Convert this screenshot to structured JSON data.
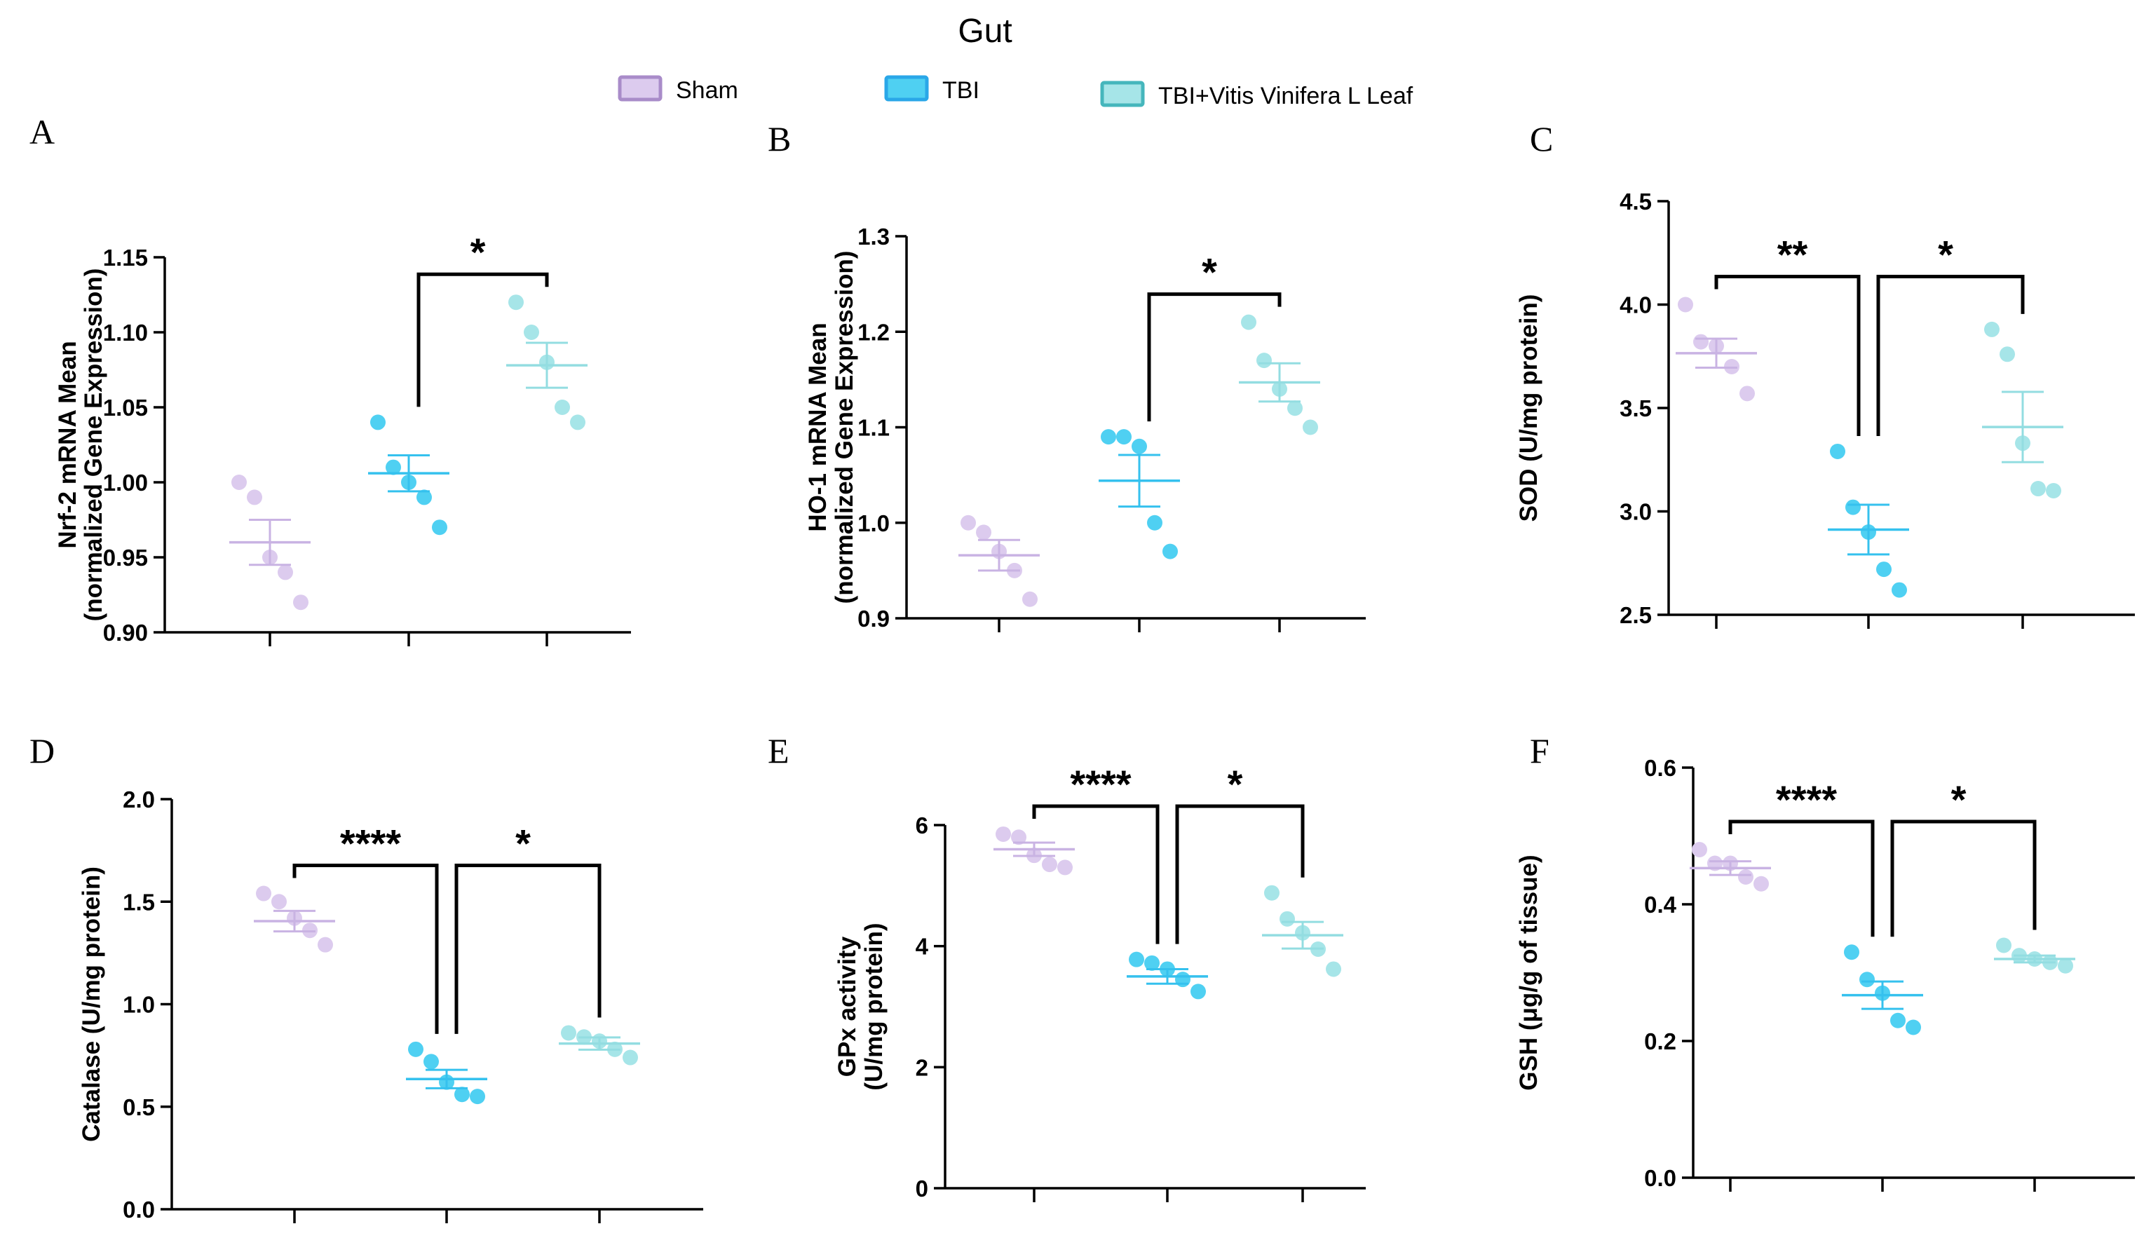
{
  "figure": {
    "title": "Gut",
    "legend": [
      {
        "label": "Sham",
        "fill": "#dccbee",
        "stroke": "#a98cc9"
      },
      {
        "label": "TBI",
        "fill": "#4fd0f2",
        "stroke": "#2aa7e8"
      },
      {
        "label": "TBI+Vitis Vinifera L Leaf",
        "fill": "#a6e5e8",
        "stroke": "#45b6bc"
      }
    ]
  },
  "colors": {
    "groups": [
      "#dccbee",
      "#4fd0f2",
      "#a6e5e8"
    ],
    "lines": [
      "#c9b3e3",
      "#35c1ee",
      "#93dde1"
    ],
    "axis": "#000000"
  },
  "chart_data": [
    {
      "panel": "A",
      "type": "scatter",
      "ylabel": [
        "Nrf-2 mRNA Mean",
        "(normalized Gene Expression)"
      ],
      "ylim": [
        0.9,
        1.15
      ],
      "yticks": [
        "0.90",
        "0.95",
        "1.00",
        "1.05",
        "1.10",
        "1.15"
      ],
      "groups": [
        "Sham",
        "TBI",
        "TBI+Vitis Vinifera L Leaf"
      ],
      "points": [
        [
          1.0,
          0.99,
          0.95,
          0.94,
          0.92
        ],
        [
          1.04,
          1.01,
          1.0,
          0.99,
          0.97
        ],
        [
          1.12,
          1.1,
          1.08,
          1.05,
          1.04
        ]
      ],
      "mean": [
        0.96,
        1.006,
        1.078
      ],
      "sem": [
        0.015,
        0.012,
        0.015
      ],
      "significance": [
        {
          "from": 1,
          "to": 2,
          "level": 1,
          "label": "*"
        }
      ]
    },
    {
      "panel": "B",
      "type": "scatter",
      "ylabel": [
        "HO-1 mRNA Mean",
        "(normalized Gene Expression)"
      ],
      "ylim": [
        0.9,
        1.3
      ],
      "yticks": [
        "0.9",
        "1.0",
        "1.1",
        "1.2",
        "1.3"
      ],
      "groups": [
        "Sham",
        "TBI",
        "TBI+Vitis Vinifera L Leaf"
      ],
      "points": [
        [
          1.0,
          0.99,
          0.97,
          0.95,
          0.92
        ],
        [
          1.09,
          1.09,
          1.08,
          1.0,
          0.97
        ],
        [
          1.21,
          1.17,
          1.14,
          1.12,
          1.1
        ]
      ],
      "mean": [
        0.966,
        1.044,
        1.147
      ],
      "sem": [
        0.016,
        0.027,
        0.02
      ],
      "significance": [
        {
          "from": 1,
          "to": 2,
          "level": 1,
          "label": "*"
        }
      ]
    },
    {
      "panel": "C",
      "type": "scatter",
      "ylabel": [
        "SOD (U/mg protein)"
      ],
      "ylim": [
        2.5,
        4.5
      ],
      "yticks": [
        "2.5",
        "3.0",
        "3.5",
        "4.0",
        "4.5"
      ],
      "groups": [
        "Sham",
        "TBI",
        "TBI+Vitis Vinifera L Leaf"
      ],
      "points": [
        [
          4.0,
          3.82,
          3.8,
          3.7,
          3.57
        ],
        [
          3.29,
          3.02,
          2.9,
          2.72,
          2.62
        ],
        [
          3.88,
          3.76,
          3.33,
          3.11,
          3.1
        ]
      ],
      "mean": [
        3.765,
        2.912,
        3.408
      ],
      "sem": [
        0.07,
        0.12,
        0.17
      ],
      "significance": [
        {
          "from": 0,
          "to": 1,
          "level": 1,
          "label": "**"
        },
        {
          "from": 1,
          "to": 2,
          "level": 1,
          "label": "*"
        }
      ]
    },
    {
      "panel": "D",
      "type": "scatter",
      "ylabel": [
        "Catalase (U/mg protein)"
      ],
      "ylim": [
        0.0,
        2.0
      ],
      "yticks": [
        "0.0",
        "0.5",
        "1.0",
        "1.5",
        "2.0"
      ],
      "groups": [
        "Sham",
        "TBI",
        "TBI+Vitis Vinifera L Leaf"
      ],
      "points": [
        [
          1.54,
          1.5,
          1.42,
          1.36,
          1.29
        ],
        [
          0.78,
          0.72,
          0.62,
          0.56,
          0.55
        ],
        [
          0.86,
          0.84,
          0.82,
          0.78,
          0.74
        ]
      ],
      "mean": [
        1.405,
        0.635,
        0.808
      ],
      "sem": [
        0.05,
        0.045,
        0.03
      ],
      "significance": [
        {
          "from": 0,
          "to": 1,
          "level": 1,
          "label": "****"
        },
        {
          "from": 1,
          "to": 2,
          "level": 1,
          "label": "*"
        }
      ]
    },
    {
      "panel": "E",
      "type": "scatter",
      "ylabel": [
        "GPx activity",
        "(U/mg protein)"
      ],
      "ylim": [
        0,
        6
      ],
      "yticks": [
        "0",
        "2",
        "4",
        "6"
      ],
      "groups": [
        "Sham",
        "TBI",
        "TBI+Vitis Vinifera L Leaf"
      ],
      "points": [
        [
          5.85,
          5.8,
          5.5,
          5.35,
          5.3
        ],
        [
          3.78,
          3.72,
          3.62,
          3.45,
          3.25
        ],
        [
          4.88,
          4.45,
          4.22,
          3.95,
          3.62
        ]
      ],
      "mean": [
        5.6,
        3.5,
        4.18
      ],
      "sem": [
        0.11,
        0.12,
        0.22
      ],
      "significance": [
        {
          "from": 0,
          "to": 1,
          "level": 1,
          "label": "****"
        },
        {
          "from": 1,
          "to": 2,
          "level": 1,
          "label": "*"
        }
      ]
    },
    {
      "panel": "F",
      "type": "scatter",
      "ylabel": [
        "GSH (μg/g of tissue)"
      ],
      "ylim": [
        0.0,
        0.6
      ],
      "yticks": [
        "0.0",
        "0.2",
        "0.4",
        "0.6"
      ],
      "groups": [
        "Sham",
        "TBI",
        "TBI+Vitis Vinifera L Leaf"
      ],
      "points": [
        [
          0.48,
          0.46,
          0.46,
          0.44,
          0.43
        ],
        [
          0.33,
          0.29,
          0.27,
          0.23,
          0.22
        ],
        [
          0.34,
          0.325,
          0.32,
          0.315,
          0.31
        ]
      ],
      "mean": [
        0.453,
        0.267,
        0.32
      ],
      "sem": [
        0.01,
        0.02,
        0.005
      ],
      "significance": [
        {
          "from": 0,
          "to": 1,
          "level": 1,
          "label": "****"
        },
        {
          "from": 1,
          "to": 2,
          "level": 1,
          "label": "*"
        }
      ]
    }
  ]
}
